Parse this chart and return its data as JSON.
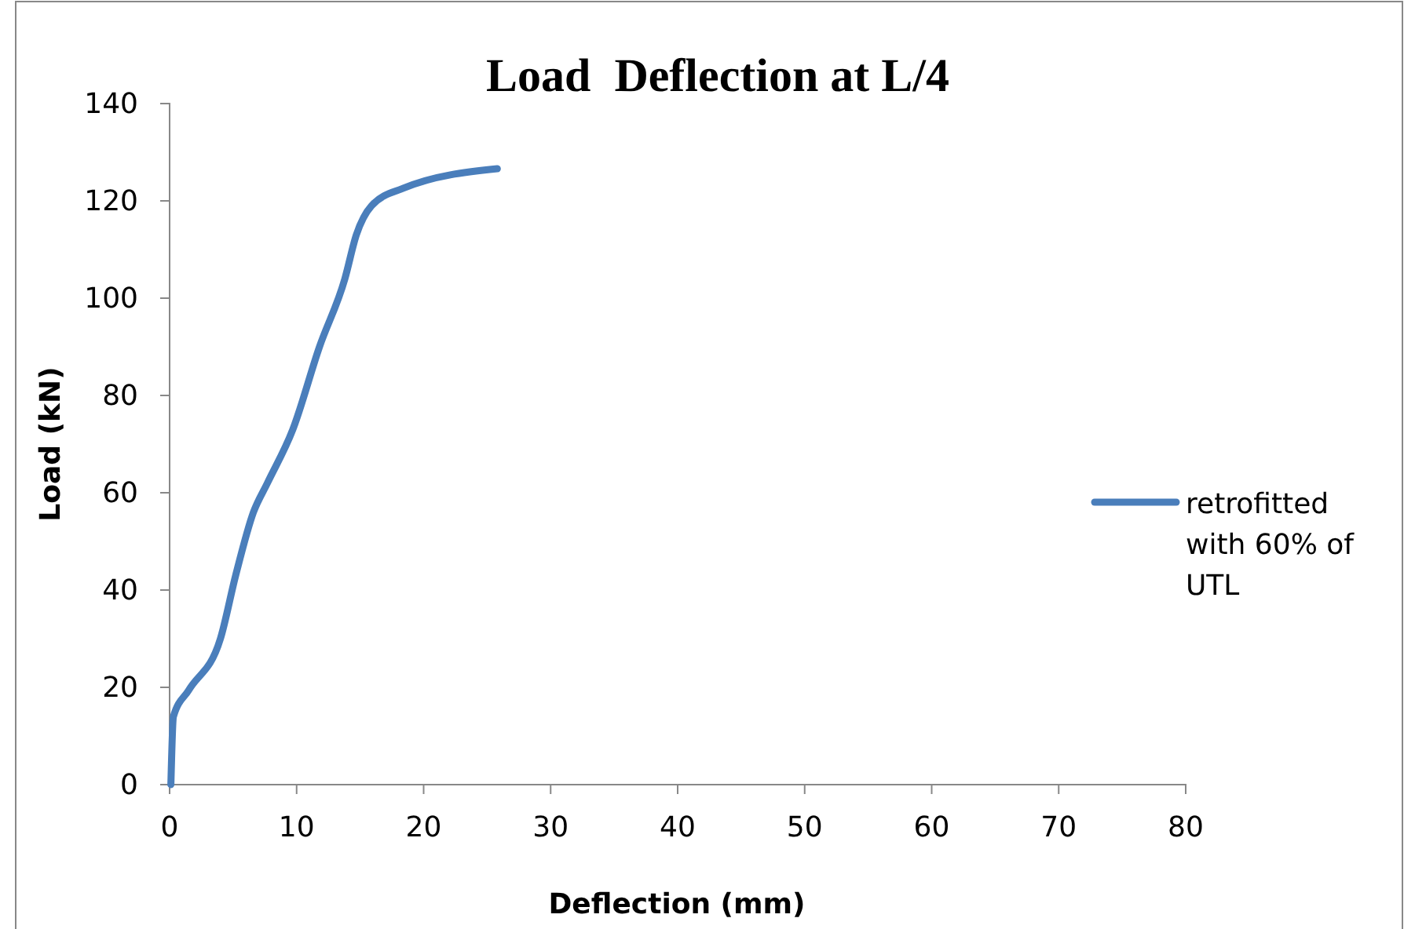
{
  "chart_data": {
    "type": "line",
    "title": "Load  Deflection at L/4",
    "xlabel": "Deflection (mm)",
    "ylabel": "Load (kN)",
    "x": [
      0.1,
      0.3,
      1.5,
      4,
      5.2,
      6.6,
      7.7,
      9.7,
      11.8,
      13.8,
      14.7,
      15.9,
      18.4,
      25.8
    ],
    "series": [
      {
        "name": "retrofitted with 60% of UTL",
        "color": "#4a7ebb",
        "values": [
          0,
          14,
          19.4,
          30,
          43,
          56,
          62,
          73,
          90,
          104,
          113,
          119,
          122.6,
          126.6
        ]
      }
    ],
    "xlim": [
      0,
      80
    ],
    "xticks": [
      0,
      10,
      20,
      30,
      40,
      50,
      60,
      70,
      80
    ],
    "ylim": [
      0,
      140
    ],
    "yticks": [
      0,
      20,
      40,
      60,
      80,
      100,
      120,
      140
    ],
    "grid": false,
    "legend": "right",
    "marker": "none",
    "line_style": "solid"
  }
}
